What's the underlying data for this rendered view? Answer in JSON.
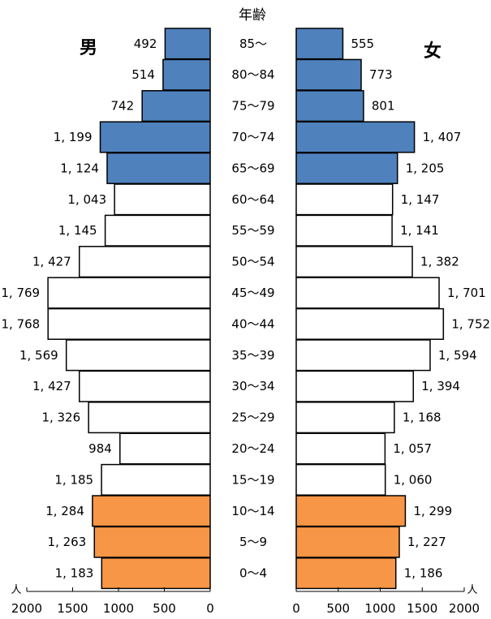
{
  "chart_data": {
    "type": "bar",
    "subtype": "population-pyramid",
    "title": "年齢",
    "unit": "人",
    "categories": [
      "85～",
      "80～84",
      "75～79",
      "70～74",
      "65～69",
      "60～64",
      "55～59",
      "50～54",
      "45～49",
      "40～44",
      "35～39",
      "30～34",
      "25～29",
      "20～24",
      "15～19",
      "10～14",
      "5～9",
      "0～4"
    ],
    "series": [
      {
        "name": "男",
        "values": [
          492,
          514,
          742,
          1199,
          1124,
          1043,
          1145,
          1427,
          1769,
          1768,
          1569,
          1427,
          1326,
          984,
          1185,
          1284,
          1263,
          1183
        ],
        "labels": [
          "492",
          "514",
          "742",
          "1, 199",
          "1, 124",
          "1, 043",
          "1, 145",
          "1, 427",
          "1, 769",
          "1, 768",
          "1, 569",
          "1, 427",
          "1, 326",
          "984",
          "1, 185",
          "1, 284",
          "1, 263",
          "1, 183"
        ]
      },
      {
        "name": "女",
        "values": [
          555,
          773,
          801,
          1407,
          1205,
          1147,
          1141,
          1382,
          1701,
          1752,
          1594,
          1394,
          1168,
          1057,
          1060,
          1299,
          1227,
          1186
        ],
        "labels": [
          "555",
          "773",
          "801",
          "1, 407",
          "1, 205",
          "1, 147",
          "1, 141",
          "1, 382",
          "1, 701",
          "1, 752",
          "1, 594",
          "1, 394",
          "1, 168",
          "1, 057",
          "1, 060",
          "1, 299",
          "1, 227",
          "1, 186"
        ]
      }
    ],
    "xlim": [
      0,
      2000
    ],
    "left_ticks": [
      "2000",
      "1500",
      "1000",
      "500",
      "0"
    ],
    "right_ticks": [
      "0",
      "500",
      "1000",
      "1500",
      "2000"
    ],
    "colors": {
      "elderly": "#4f81bd",
      "working": "#ffffff",
      "youth": "#f79646",
      "border": "#000000"
    },
    "group_ranges": {
      "elderly": [
        0,
        4
      ],
      "working": [
        5,
        14
      ],
      "youth": [
        15,
        17
      ]
    },
    "grid": false,
    "legend": "none"
  }
}
